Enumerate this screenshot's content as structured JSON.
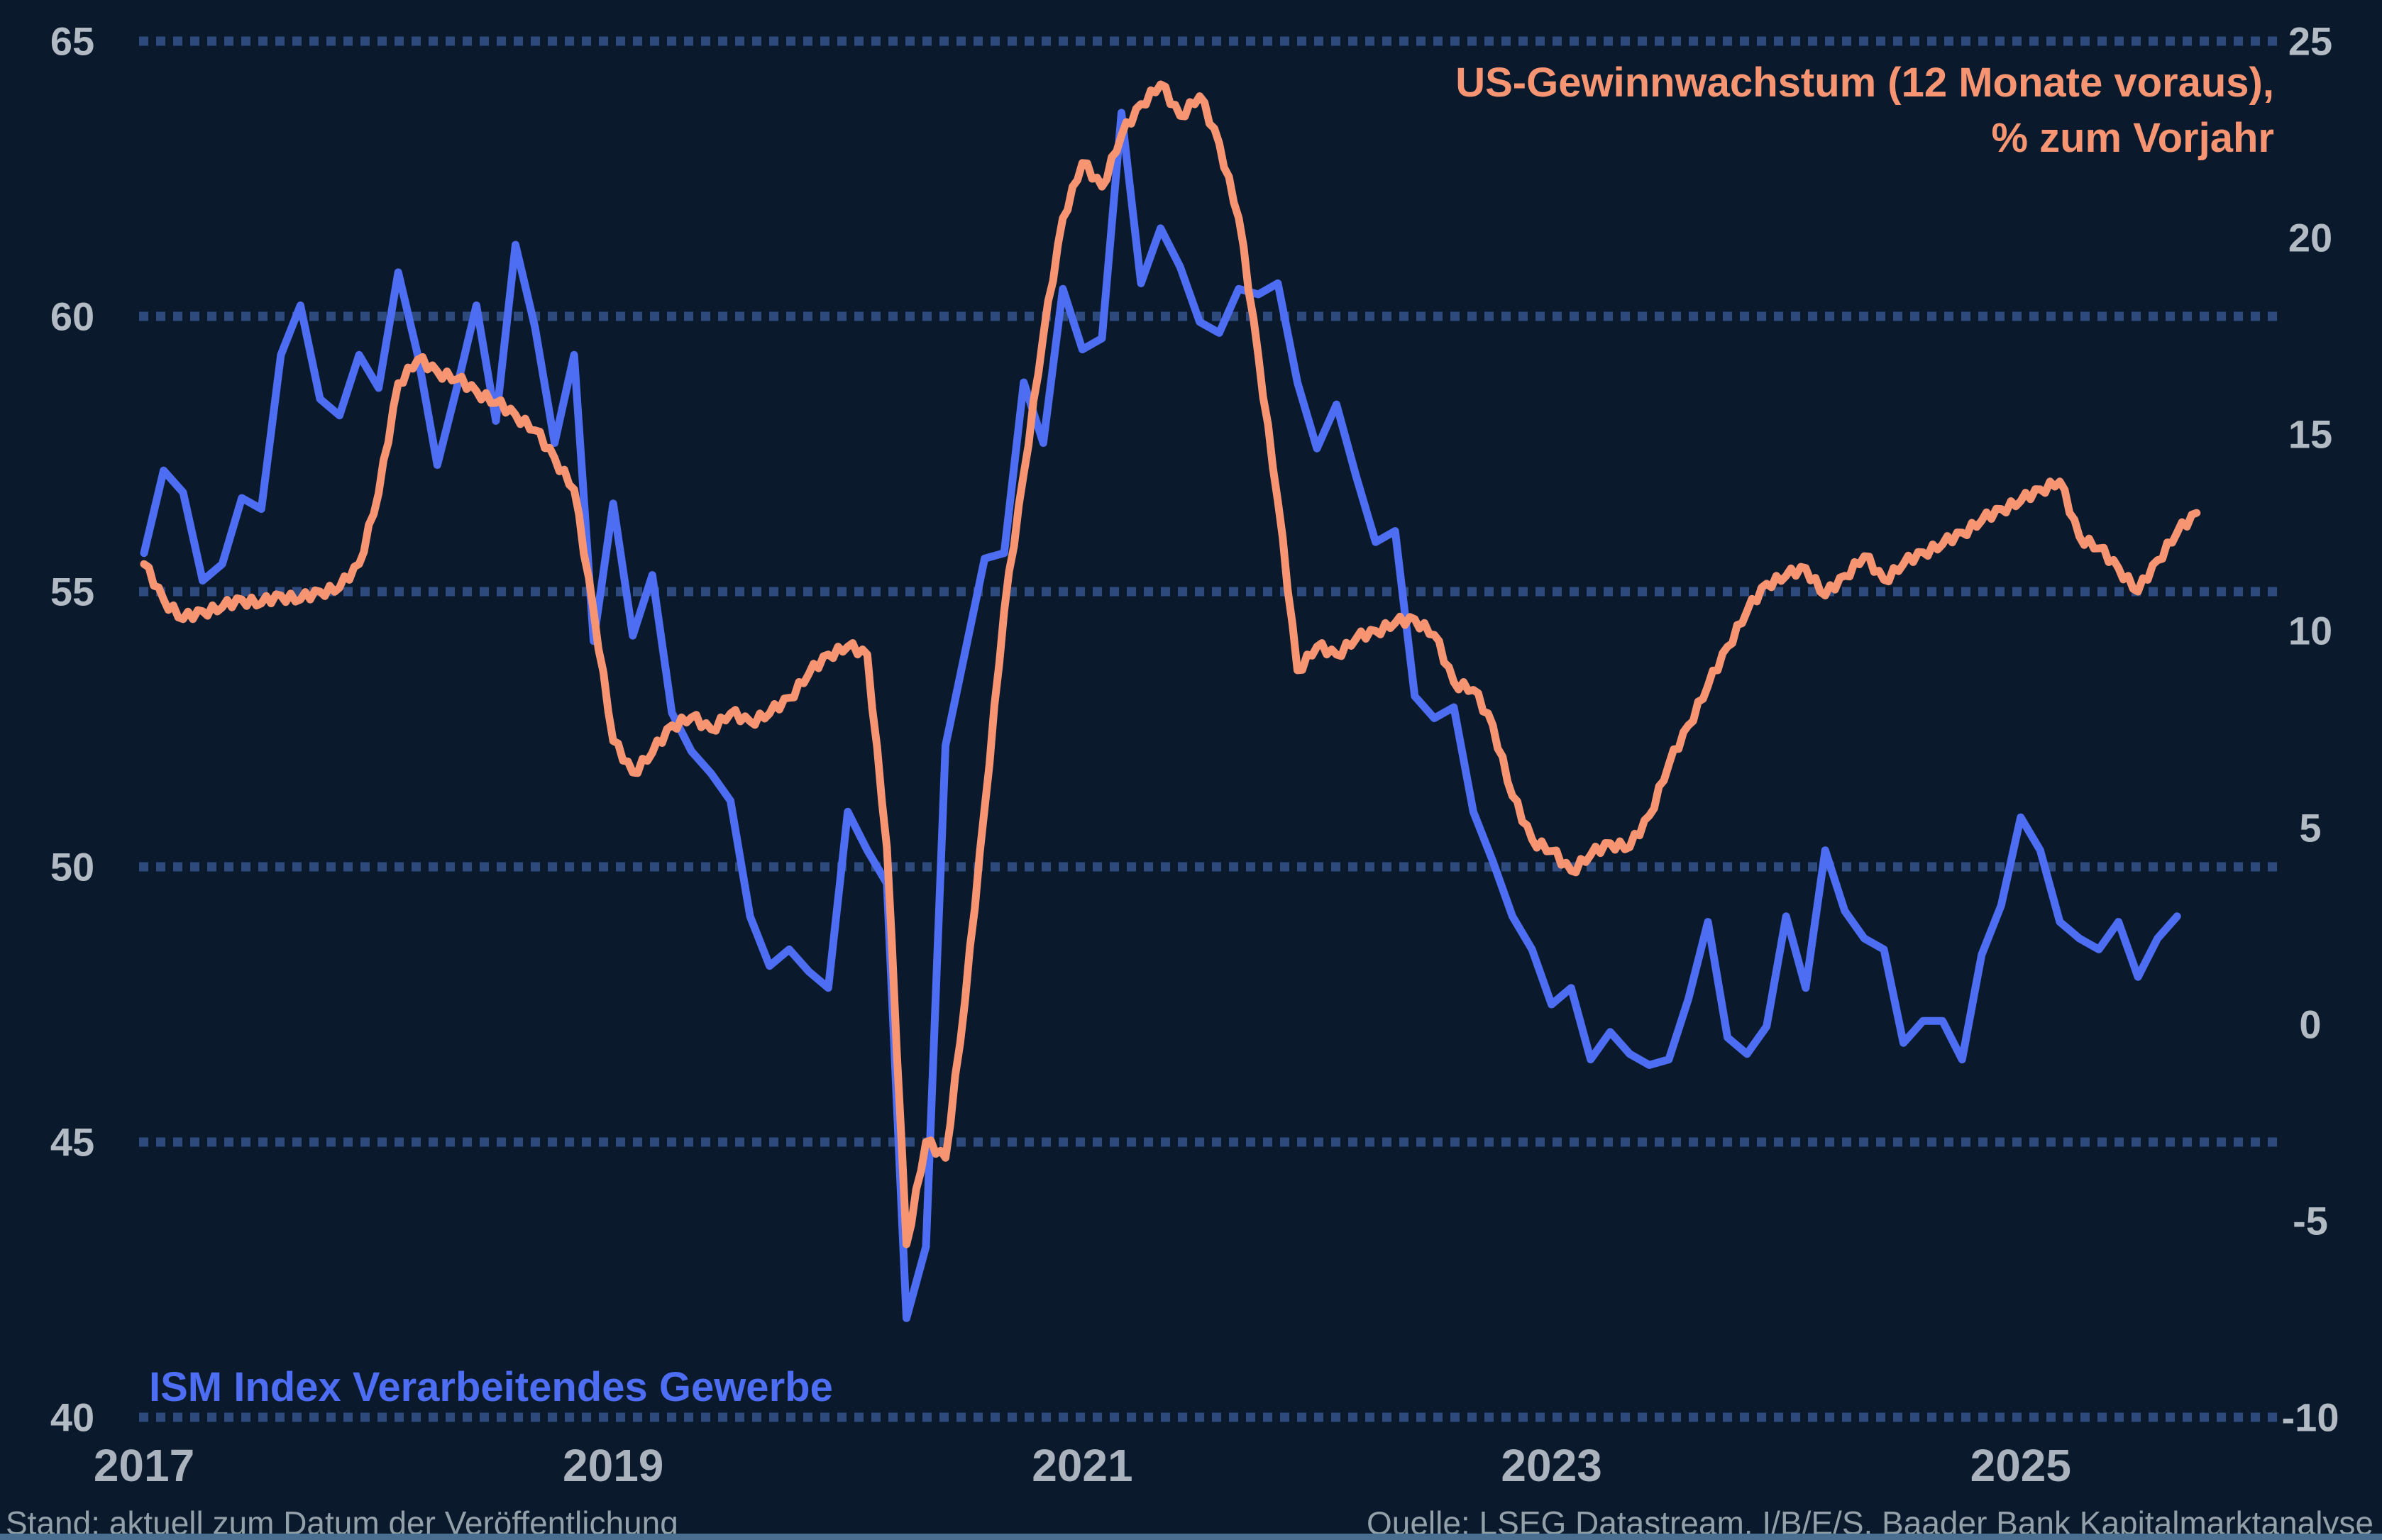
{
  "legend": {
    "line1": "US-Gewinnwachstum (12 Monate voraus),",
    "line2": "% zum Vorjahr"
  },
  "series_label_blue": "ISM Index Verarbeitendes Gewerbe",
  "footnote_left": "Stand: aktuell zum Datum der Veröffentlichung",
  "footnote_right": "Quelle: LSEG Datastream, I/B/E/S, Baader Bank Kapitalmarktanalyse",
  "colors": {
    "background": "#0a1a2c",
    "grid": "#2e4a7d",
    "ism_line": "#4d6df2",
    "earnings_line": "#f79573",
    "axis_text": "#b2bac4",
    "year_text": "#a9b2bd",
    "footer_text": "#939fa9",
    "bottom_bar": "#4a6e90"
  },
  "chart_data": {
    "type": "line",
    "title": "",
    "x": {
      "start": "2017-01",
      "frequency": "monthly",
      "tick_labels": [
        "2017",
        "2019",
        "2021",
        "2023",
        "2025"
      ],
      "tick_positions_months": [
        0,
        24,
        48,
        72,
        96
      ]
    },
    "left_axis": {
      "label": "ISM Index Verarbeitendes Gewerbe",
      "range": [
        40,
        65
      ],
      "ticks": [
        65,
        60,
        55,
        50,
        45,
        40
      ]
    },
    "right_axis": {
      "label": "US-Gewinnwachstum (12 Monate voraus), % zum Vorjahr",
      "range": [
        -10,
        25
      ],
      "ticks": [
        25,
        20,
        15,
        10,
        5,
        0,
        -5,
        -10
      ]
    },
    "grid": {
      "horizontal_dotted_at_left_ticks": true,
      "vertical": false
    },
    "legend_position": "top-right",
    "series": [
      {
        "name": "ISM Index Verarbeitendes Gewerbe",
        "axis": "left",
        "color": "#4d6df2",
        "start": "2017-01",
        "values": [
          55.7,
          57.2,
          56.8,
          55.2,
          55.5,
          56.7,
          56.5,
          59.3,
          60.2,
          58.5,
          58.2,
          59.3,
          58.7,
          60.8,
          59.3,
          57.3,
          58.7,
          60.2,
          58.1,
          61.3,
          59.8,
          57.7,
          59.3,
          54.1,
          56.6,
          54.2,
          55.3,
          52.8,
          52.1,
          51.7,
          51.2,
          49.1,
          48.2,
          48.5,
          48.1,
          47.8,
          51.0,
          50.3,
          49.7,
          41.8,
          43.1,
          52.2,
          53.9,
          55.6,
          55.7,
          58.8,
          57.7,
          60.5,
          59.4,
          59.6,
          63.7,
          60.6,
          61.6,
          60.9,
          59.9,
          59.7,
          60.5,
          60.4,
          60.6,
          58.8,
          57.6,
          58.4,
          57.1,
          55.9,
          56.1,
          53.1,
          52.7,
          52.9,
          51.0,
          50.1,
          49.1,
          48.5,
          47.5,
          47.8,
          46.5,
          47.0,
          46.6,
          46.4,
          46.5,
          47.6,
          49.0,
          46.9,
          46.6,
          47.1,
          49.1,
          47.8,
          50.3,
          49.2,
          48.7,
          48.5,
          46.8,
          47.2,
          47.2,
          46.5,
          48.4,
          49.3,
          50.9,
          50.3,
          49.0,
          48.7,
          48.5,
          49.0,
          48.0,
          48.7,
          49.1
        ]
      },
      {
        "name": "US-Gewinnwachstum (12 Monate voraus), % zum Vorjahr",
        "axis": "right",
        "color": "#f79573",
        "start": "2017-01",
        "values": [
          11.7,
          10.8,
          10.3,
          10.5,
          10.6,
          10.8,
          10.7,
          10.9,
          10.8,
          11.0,
          11.1,
          11.7,
          13.5,
          16.3,
          16.9,
          16.6,
          16.4,
          16.1,
          15.8,
          15.5,
          15.1,
          14.4,
          13.6,
          10.5,
          7.2,
          6.4,
          6.9,
          7.6,
          7.8,
          7.5,
          7.9,
          7.7,
          7.9,
          8.3,
          8.9,
          9.4,
          9.6,
          9.4,
          4.5,
          -5.6,
          -3.0,
          -3.4,
          0.6,
          5.5,
          10.5,
          14.0,
          17.5,
          20.5,
          21.9,
          21.3,
          22.6,
          23.4,
          23.9,
          23.1,
          23.6,
          22.4,
          20.5,
          17.0,
          13.3,
          9.0,
          9.6,
          9.4,
          9.8,
          10.0,
          10.2,
          10.3,
          9.9,
          8.7,
          8.5,
          7.6,
          5.8,
          4.7,
          4.4,
          3.9,
          4.3,
          4.6,
          4.5,
          5.3,
          6.6,
          7.6,
          8.6,
          9.6,
          10.5,
          11.2,
          11.4,
          11.6,
          10.9,
          11.4,
          11.9,
          11.3,
          11.7,
          12.0,
          12.2,
          12.5,
          12.8,
          13.1,
          13.3,
          13.6,
          13.8,
          12.4,
          12.1,
          11.6,
          11.0,
          11.8,
          12.5,
          13.0
        ]
      }
    ]
  }
}
